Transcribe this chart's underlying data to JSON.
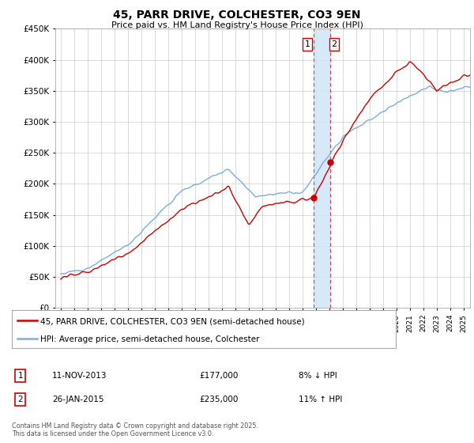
{
  "title": "45, PARR DRIVE, COLCHESTER, CO3 9EN",
  "subtitle": "Price paid vs. HM Land Registry's House Price Index (HPI)",
  "ylim": [
    0,
    450000
  ],
  "sale1_date": 2013.86,
  "sale1_price": 177000,
  "sale2_date": 2015.07,
  "sale2_price": 235000,
  "red_line_color": "#cc0000",
  "blue_line_color": "#7aadde",
  "shade_color": "#d0e4f7",
  "grid_color": "#cccccc",
  "legend_label_red": "45, PARR DRIVE, COLCHESTER, CO3 9EN (semi-detached house)",
  "legend_label_blue": "HPI: Average price, semi-detached house, Colchester",
  "annotation1_text": "11-NOV-2013",
  "annotation1_price": "£177,000",
  "annotation1_pct": "8% ↓ HPI",
  "annotation2_text": "26-JAN-2015",
  "annotation2_price": "£235,000",
  "annotation2_pct": "11% ↑ HPI",
  "footnote": "Contains HM Land Registry data © Crown copyright and database right 2025.\nThis data is licensed under the Open Government Licence v3.0.",
  "background_color": "#ffffff"
}
